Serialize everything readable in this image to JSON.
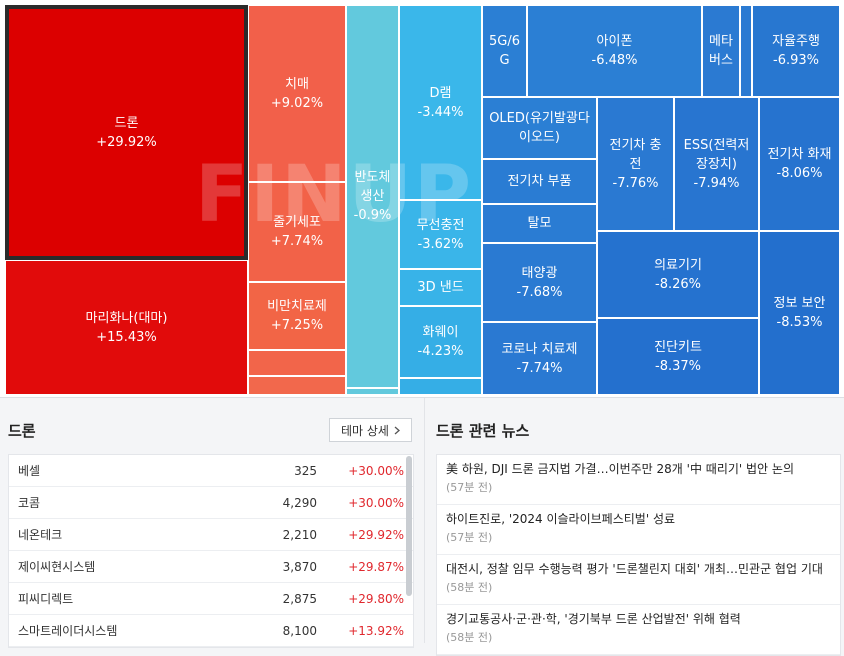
{
  "treemap": {
    "watermark": "FINUP",
    "cells": [
      {
        "name": "드론",
        "change": "+29.92%",
        "color": "#dc0000",
        "selected": true
      },
      {
        "name": "마리화나(대마)",
        "change": "+15.43%",
        "color": "#e10b0b"
      },
      {
        "name": "치매",
        "change": "+9.02%",
        "color": "#f2604a"
      },
      {
        "name": "줄기세포",
        "change": "+7.74%",
        "color": "#f26248"
      },
      {
        "name": "비만치료제",
        "change": "+7.25%",
        "color": "#f26546"
      },
      {
        "name": "",
        "change": "",
        "color": "#f2654a"
      },
      {
        "name": "",
        "change": "",
        "color": "#f2684c"
      },
      {
        "name": "반도체\n생산",
        "change": "-0.9%",
        "color": "#62c9dd"
      },
      {
        "name": "",
        "change": "",
        "color": "#62c9dd"
      },
      {
        "name": "D램",
        "change": "-3.44%",
        "color": "#3ab7ea"
      },
      {
        "name": "무선충전",
        "change": "-3.62%",
        "color": "#3ab5e9"
      },
      {
        "name": "3D 낸드",
        "change": "",
        "color": "#38b3e8"
      },
      {
        "name": "화웨이",
        "change": "-4.23%",
        "color": "#35aee6"
      },
      {
        "name": "",
        "change": "",
        "color": "#35aee6"
      },
      {
        "name": "5G/6\nG",
        "change": "",
        "color": "#2b7fd4"
      },
      {
        "name": "아이폰",
        "change": "-6.48%",
        "color": "#2b7fd4"
      },
      {
        "name": "메타\n버스",
        "change": "",
        "color": "#2b7ad2"
      },
      {
        "name": "",
        "change": "",
        "color": "#2b7ad2"
      },
      {
        "name": "자율주행",
        "change": "-6.93%",
        "color": "#2877d0"
      },
      {
        "name": "OLED(유기발광다\n이오드)",
        "change": "",
        "color": "#2b7fd4"
      },
      {
        "name": "전기차 부품",
        "change": "",
        "color": "#2a7cd3"
      },
      {
        "name": "탈모",
        "change": "",
        "color": "#2a7cd3"
      },
      {
        "name": "전기차 충\n전",
        "change": "-7.76%",
        "color": "#2a79d2"
      },
      {
        "name": "ESS(전력저\n장장치)",
        "change": "-7.94%",
        "color": "#2875d0"
      },
      {
        "name": "전기차 화재",
        "change": "-8.06%",
        "color": "#2673cf"
      },
      {
        "name": "태양광",
        "change": "-7.68%",
        "color": "#2a7ad2"
      },
      {
        "name": "의료기기",
        "change": "-8.26%",
        "color": "#2572cf"
      },
      {
        "name": "정보 보안",
        "change": "-8.53%",
        "color": "#236fcd"
      },
      {
        "name": "코로나 치료제",
        "change": "-7.74%",
        "color": "#2a79d2"
      },
      {
        "name": "진단키트",
        "change": "-8.37%",
        "color": "#2470ce"
      },
      {
        "name": "",
        "change": "",
        "color": "#236fcd"
      }
    ]
  },
  "stocks_panel": {
    "title": "드론",
    "detail_button": "테마 상세",
    "rows": [
      {
        "name": "베셀",
        "price": "325",
        "change": "+30.00%"
      },
      {
        "name": "코콤",
        "price": "4,290",
        "change": "+30.00%"
      },
      {
        "name": "네온테크",
        "price": "2,210",
        "change": "+29.92%"
      },
      {
        "name": "제이씨현시스템",
        "price": "3,870",
        "change": "+29.87%"
      },
      {
        "name": "피씨디렉트",
        "price": "2,875",
        "change": "+29.80%"
      },
      {
        "name": "스마트레이더시스템",
        "price": "8,100",
        "change": "+13.92%"
      }
    ]
  },
  "news_panel": {
    "title": "드론 관련 뉴스",
    "items": [
      {
        "title": "美 하원, DJI 드론 금지법 가결…이번주만 28개 '中 때리기' 법안 논의",
        "time": "(57분 전)"
      },
      {
        "title": "하이트진로, '2024 이슬라이브페스티벌' 성료",
        "time": "(57분 전)"
      },
      {
        "title": "대전시, 정찰 임무 수행능력 평가 '드론챌린지 대회' 개최…민관군 협업 기대",
        "time": "(58분 전)"
      },
      {
        "title": "경기교통공사·군·관·학, '경기북부 드론 산업발전' 위해 협력",
        "time": "(58분 전)"
      }
    ]
  }
}
